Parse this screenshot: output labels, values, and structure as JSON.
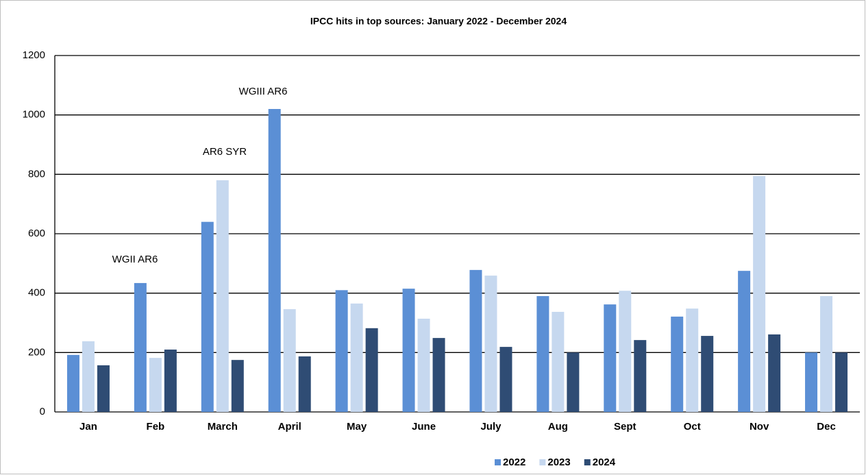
{
  "chart_data": {
    "type": "bar",
    "title": "IPCC hits in top sources: January 2022 - December 2024",
    "categories": [
      "Jan",
      "Feb",
      "March",
      "April",
      "May",
      "June",
      "July",
      "Aug",
      "Sept",
      "Oct",
      "Nov",
      "Dec"
    ],
    "series": [
      {
        "name": "2022",
        "color": "#5b8fd5",
        "values": [
          192,
          434,
          640,
          1020,
          410,
          415,
          478,
          390,
          362,
          321,
          475,
          200
        ]
      },
      {
        "name": "2023",
        "color": "#c6d8ef",
        "values": [
          238,
          182,
          780,
          346,
          365,
          314,
          459,
          337,
          408,
          348,
          794,
          390
        ]
      },
      {
        "name": "2024",
        "color": "#2f4c74",
        "values": [
          157,
          210,
          175,
          187,
          282,
          249,
          219,
          200,
          242,
          256,
          261,
          200
        ]
      }
    ],
    "annotations": [
      "WGII AR6",
      "AR6 SYR",
      "WGIII AR6"
    ],
    "ylim": [
      0,
      1200
    ],
    "yticks": [
      0,
      200,
      400,
      600,
      800,
      1000,
      1200
    ],
    "grid": true,
    "legend": "bottom"
  }
}
